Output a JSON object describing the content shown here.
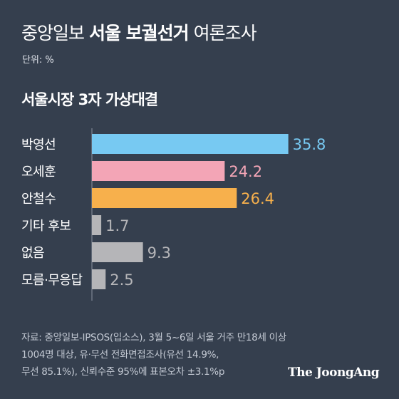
{
  "header": {
    "title_pre": "중앙일보 ",
    "title_highlight": "서울 보궐선거",
    "title_post": " 여론조사",
    "unit": "단위: %"
  },
  "chart_data": {
    "type": "bar",
    "orientation": "horizontal",
    "title": "서울시장 3자 가상대결",
    "categories": [
      "박영선",
      "오세훈",
      "안철수",
      "기타 후보",
      "없음",
      "모름·무응답"
    ],
    "values": [
      35.8,
      24.2,
      26.4,
      1.7,
      9.3,
      2.5
    ],
    "value_labels": [
      "35.8",
      "24.2",
      "26.4",
      "1.7",
      "9.3",
      "2.5"
    ],
    "colors": [
      "#77c9f2",
      "#f3a5b6",
      "#f7b04c",
      "#b5b5b8",
      "#b5b5b8",
      "#b5b5b8"
    ],
    "grid": false,
    "legend": "none"
  },
  "source": {
    "lines": [
      "자료: 중앙일보-IPSOS(입소스), 3월 5~6일 서울 거주 만18세 이상",
      "1004명 대상, 유·무선 전화면접조사(유선 14.9%,",
      "무선 85.1%), 신뢰수준 95%에 표본오차 ±3.1%p"
    ]
  },
  "branding": {
    "logo": "The JoongAng"
  }
}
